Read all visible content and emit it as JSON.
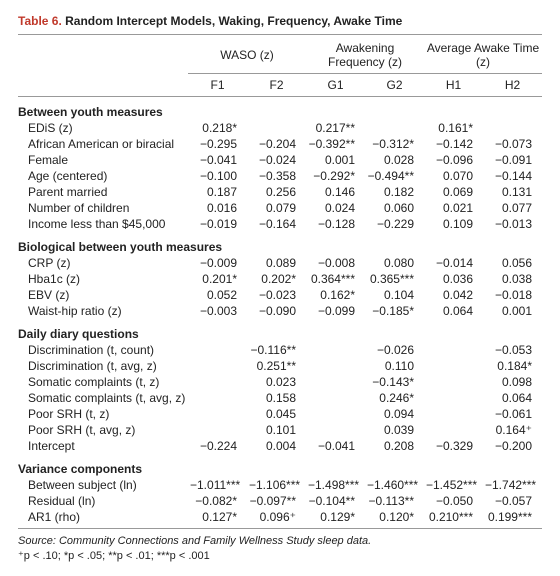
{
  "title": {
    "number": "Table 6.",
    "text": "Random Intercept Models, Waking, Frequency, Awake Time"
  },
  "groupHeaders": [
    "WASO (z)",
    "Awakening Frequency (z)",
    "Average Awake Time (z)"
  ],
  "colHeaders": [
    "F1",
    "F2",
    "G1",
    "G2",
    "H1",
    "H2"
  ],
  "sections": [
    {
      "title": "Between youth measures",
      "rows": [
        {
          "label": "EDiS (z)",
          "vals": [
            "0.218*",
            "",
            "0.217**",
            "",
            "0.161*",
            ""
          ]
        },
        {
          "label": "African American or biracial",
          "vals": [
            "−0.295",
            "−0.204",
            "−0.392**",
            "−0.312*",
            "−0.142",
            "−0.073"
          ]
        },
        {
          "label": "Female",
          "vals": [
            "−0.041",
            "−0.024",
            "0.001",
            "0.028",
            "−0.096",
            "−0.091"
          ]
        },
        {
          "label": "Age (centered)",
          "vals": [
            "−0.100",
            "−0.358",
            "−0.292*",
            "−0.494**",
            "0.070",
            "−0.144"
          ]
        },
        {
          "label": "Parent married",
          "vals": [
            "0.187",
            "0.256",
            "0.146",
            "0.182",
            "0.069",
            "0.131"
          ]
        },
        {
          "label": "Number of children",
          "vals": [
            "0.016",
            "0.079",
            "0.024",
            "0.060",
            "0.021",
            "0.077"
          ]
        },
        {
          "label": "Income less than $45,000",
          "vals": [
            "−0.019",
            "−0.164",
            "−0.128",
            "−0.229",
            "0.109",
            "−0.013"
          ]
        }
      ]
    },
    {
      "title": "Biological between youth measures",
      "rows": [
        {
          "label": "CRP (z)",
          "vals": [
            "−0.009",
            "0.089",
            "−0.008",
            "0.080",
            "−0.014",
            "0.056"
          ]
        },
        {
          "label": "Hba1c (z)",
          "vals": [
            "0.201*",
            "0.202*",
            "0.364***",
            "0.365***",
            "0.036",
            "0.038"
          ]
        },
        {
          "label": "EBV (z)",
          "vals": [
            "0.052",
            "−0.023",
            "0.162*",
            "0.104",
            "0.042",
            "−0.018"
          ]
        },
        {
          "label": "Waist-hip ratio (z)",
          "vals": [
            "−0.003",
            "−0.090",
            "−0.099",
            "−0.185*",
            "0.064",
            "0.001"
          ]
        }
      ]
    },
    {
      "title": "Daily diary questions",
      "rows": [
        {
          "label": "Discrimination (t, count)",
          "vals": [
            "",
            "−0.116**",
            "",
            "−0.026",
            "",
            "−0.053"
          ]
        },
        {
          "label": "Discrimination (t, avg, z)",
          "vals": [
            "",
            "0.251**",
            "",
            "0.110",
            "",
            "0.184*"
          ]
        },
        {
          "label": "Somatic complaints (t, z)",
          "vals": [
            "",
            "0.023",
            "",
            "−0.143*",
            "",
            "0.098"
          ]
        },
        {
          "label": "Somatic complaints (t, avg, z)",
          "vals": [
            "",
            "0.158",
            "",
            "0.246*",
            "",
            "0.064"
          ]
        },
        {
          "label": "Poor SRH (t, z)",
          "vals": [
            "",
            "0.045",
            "",
            "0.094",
            "",
            "−0.061"
          ]
        },
        {
          "label": "Poor SRH (t, avg, z)",
          "vals": [
            "",
            "0.101",
            "",
            "0.039",
            "",
            "0.164⁺"
          ]
        },
        {
          "label": "Intercept",
          "vals": [
            "−0.224",
            "0.004",
            "−0.041",
            "0.208",
            "−0.329",
            "−0.200"
          ]
        }
      ]
    },
    {
      "title": "Variance components",
      "rows": [
        {
          "label": "Between subject (ln)",
          "vals": [
            "−1.011***",
            "−1.106***",
            "−1.498***",
            "−1.460***",
            "−1.452***",
            "−1.742***"
          ]
        },
        {
          "label": "Residual (ln)",
          "vals": [
            "−0.082*",
            "−0.097**",
            "−0.104**",
            "−0.113**",
            "−0.050",
            "−0.057"
          ]
        },
        {
          "label": "AR1 (rho)",
          "vals": [
            "0.127*",
            "0.096⁺",
            "0.129*",
            "0.120*",
            "0.210***",
            "0.199***"
          ]
        }
      ]
    }
  ],
  "source": {
    "label": "Source:",
    "text": " Community Connections and Family Wellness Study sleep data."
  },
  "notes": "⁺p < .10; *p < .05; **p < .01; ***p < .001"
}
